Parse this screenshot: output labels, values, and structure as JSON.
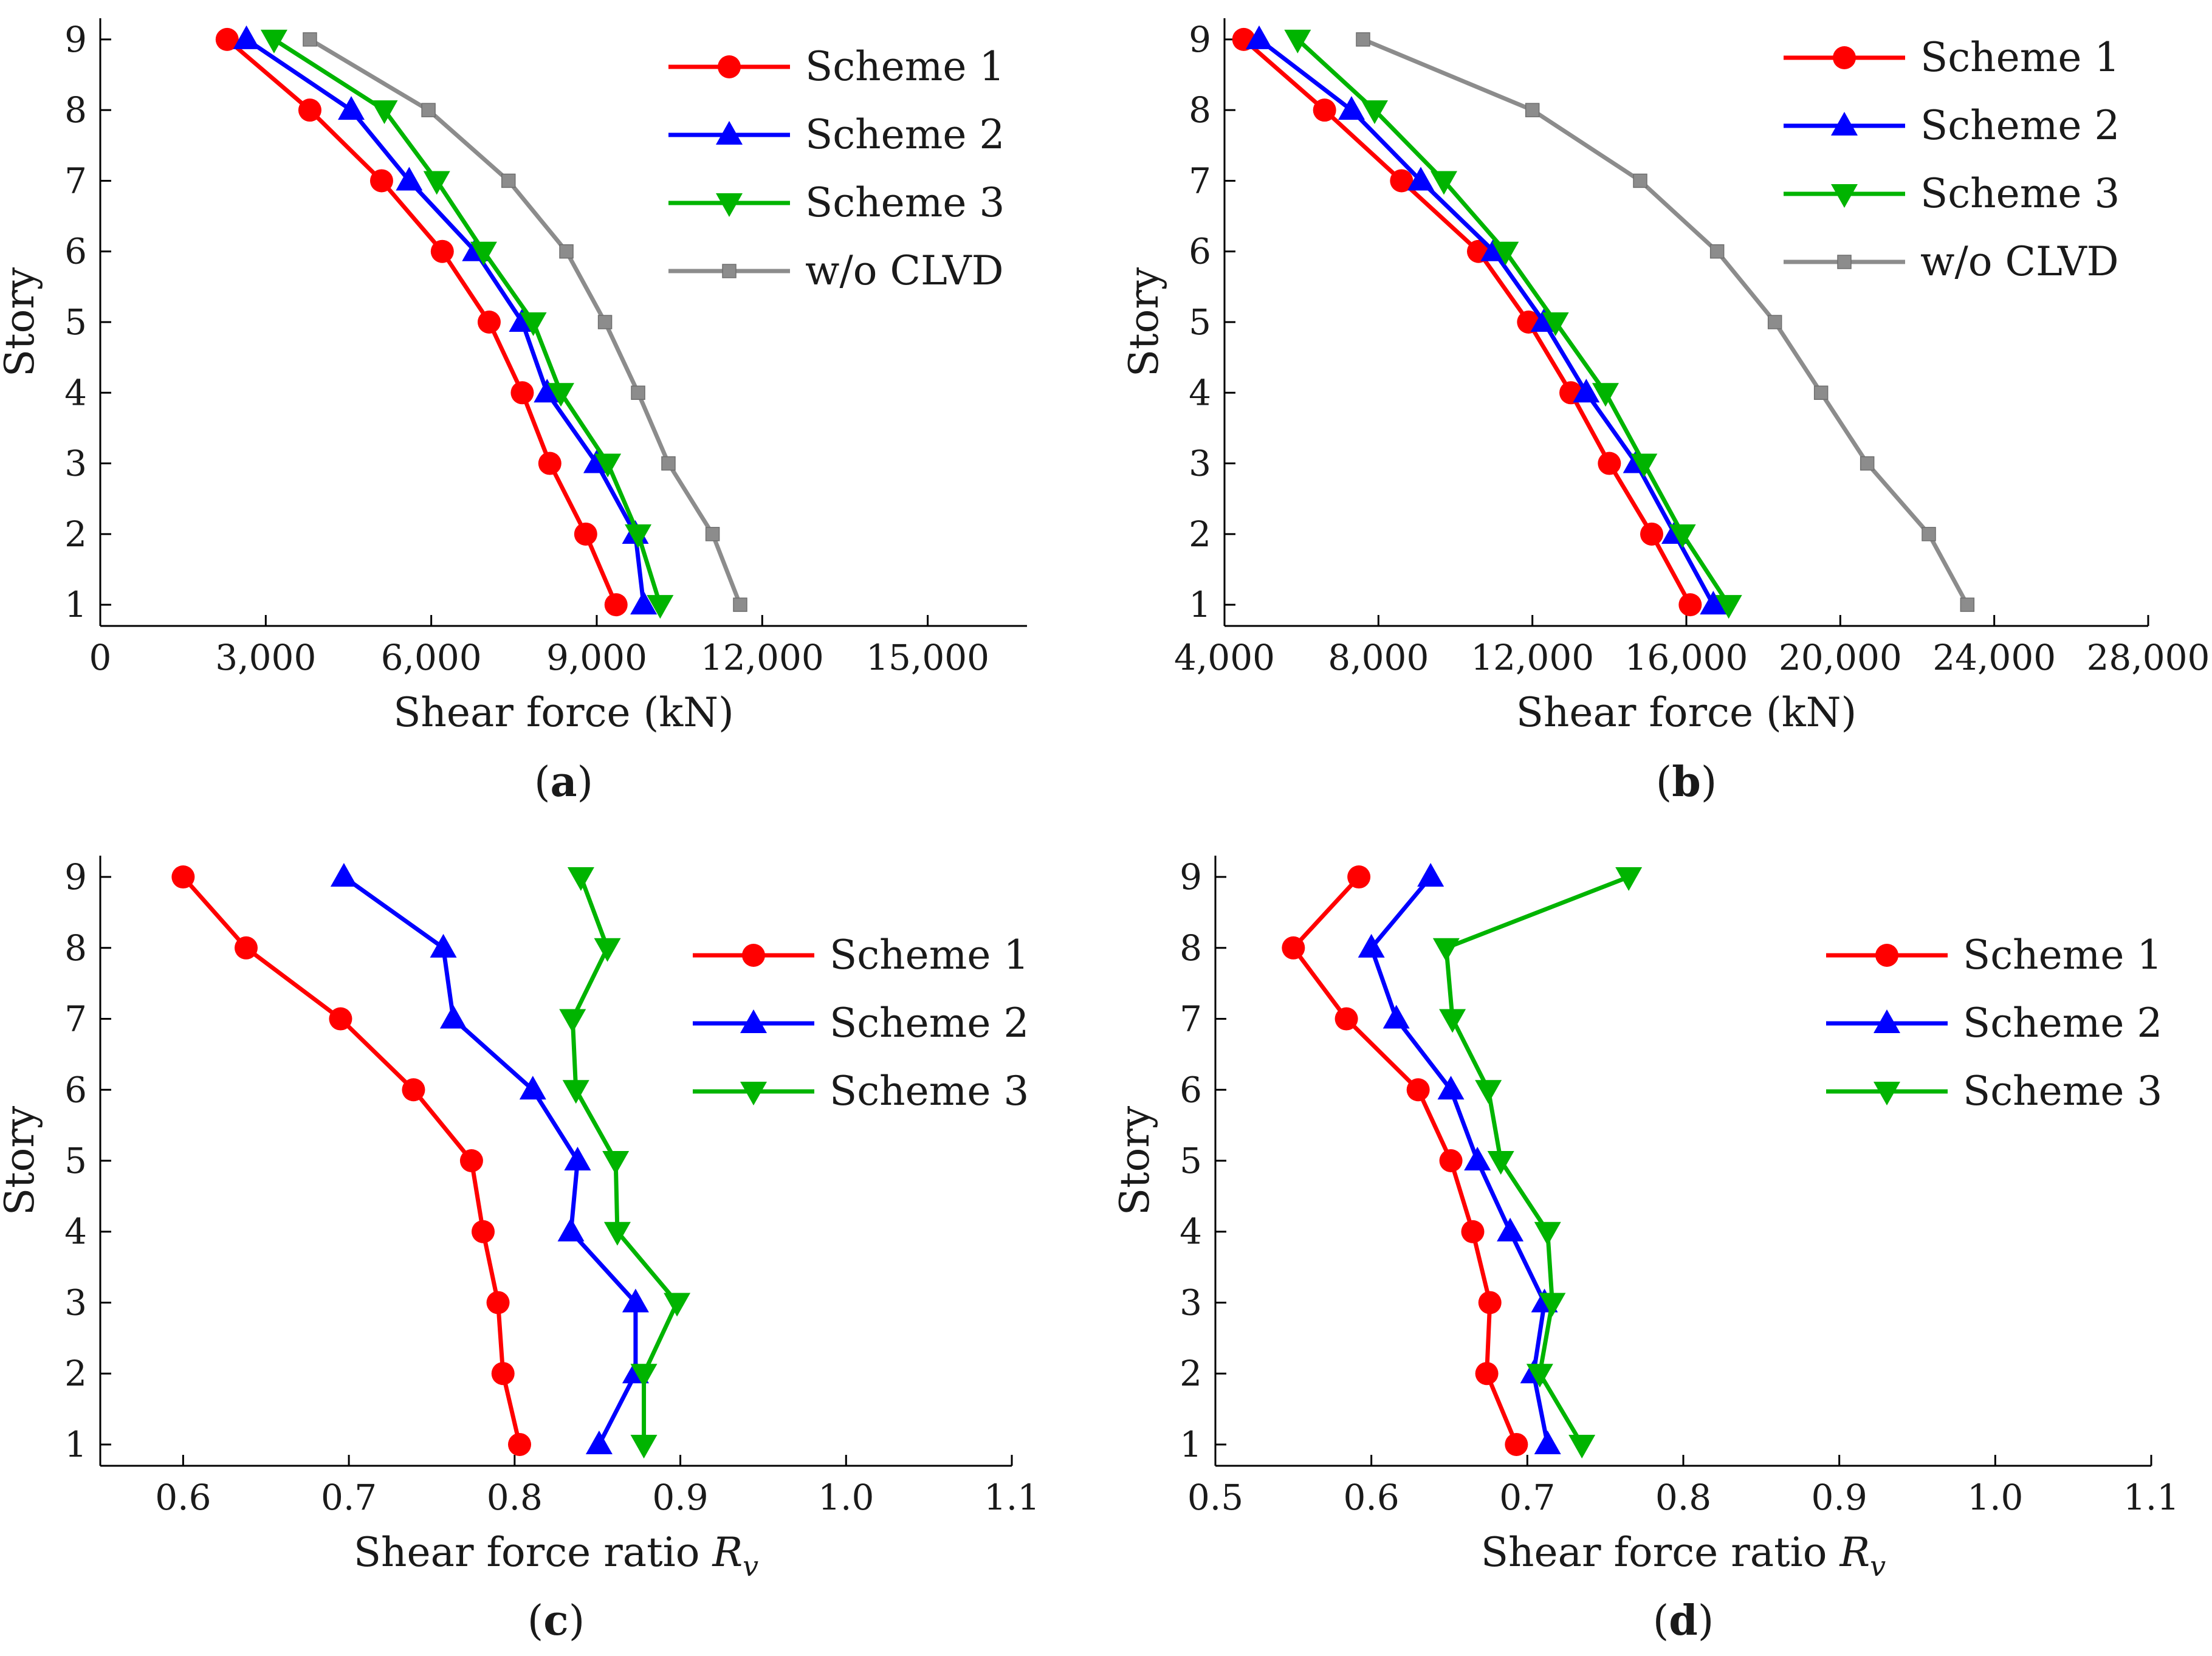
{
  "charts": [
    {
      "id": "a",
      "type": "line",
      "caption": "a",
      "xlabel": "Shear force (kN)",
      "ylabel": "Story",
      "xlim": [
        0,
        16800
      ],
      "ylim": [
        0.7,
        9.3
      ],
      "xticks": [
        0,
        3000,
        6000,
        9000,
        12000,
        15000
      ],
      "xtick_labels": [
        "0",
        "3,000",
        "6,000",
        "9,000",
        "12,000",
        "15,000"
      ],
      "yticks": [
        1,
        2,
        3,
        4,
        5,
        6,
        7,
        8,
        9
      ],
      "ytick_labels": [
        "1",
        "2",
        "3",
        "4",
        "5",
        "6",
        "7",
        "8",
        "9"
      ],
      "legend_position": "top-right",
      "series": [
        {
          "name": "Scheme 1",
          "color": "#ff0000",
          "marker": "circle",
          "y": [
            1,
            2,
            3,
            4,
            5,
            6,
            7,
            8,
            9
          ],
          "x": [
            9350,
            8800,
            8150,
            7650,
            7050,
            6200,
            5100,
            3800,
            2300
          ]
        },
        {
          "name": "Scheme 2",
          "color": "#0000ff",
          "marker": "triangle-up",
          "y": [
            1,
            2,
            3,
            4,
            5,
            6,
            7,
            8,
            9
          ],
          "x": [
            9850,
            9700,
            9000,
            8100,
            7650,
            6800,
            5600,
            4550,
            2650
          ]
        },
        {
          "name": "Scheme 3",
          "color": "#00b400",
          "marker": "triangle-down",
          "y": [
            1,
            2,
            3,
            4,
            5,
            6,
            7,
            8,
            9
          ],
          "x": [
            10150,
            9750,
            9200,
            8350,
            7850,
            6950,
            6100,
            5150,
            3150
          ]
        },
        {
          "name": "w/o CLVD",
          "color": "#8c8c8c",
          "marker": "square",
          "y": [
            1,
            2,
            3,
            4,
            5,
            6,
            7,
            8,
            9
          ],
          "x": [
            11600,
            11100,
            10300,
            9750,
            9150,
            8450,
            7400,
            5950,
            3800
          ]
        }
      ]
    },
    {
      "id": "b",
      "type": "line",
      "caption": "b",
      "xlabel": "Shear force (kN)",
      "ylabel": "Story",
      "xlim": [
        4000,
        28000
      ],
      "ylim": [
        0.7,
        9.3
      ],
      "xticks": [
        4000,
        8000,
        12000,
        16000,
        20000,
        24000,
        28000
      ],
      "xtick_labels": [
        "4,000",
        "8,000",
        "12,000",
        "16,000",
        "20,000",
        "24,000",
        "28,000"
      ],
      "yticks": [
        1,
        2,
        3,
        4,
        5,
        6,
        7,
        8,
        9
      ],
      "ytick_labels": [
        "1",
        "2",
        "3",
        "4",
        "5",
        "6",
        "7",
        "8",
        "9"
      ],
      "legend_position": "top-right",
      "series": [
        {
          "name": "Scheme 1",
          "color": "#ff0000",
          "marker": "circle",
          "y": [
            1,
            2,
            3,
            4,
            5,
            6,
            7,
            8,
            9
          ],
          "x": [
            16100,
            15100,
            14000,
            13000,
            11900,
            10600,
            8600,
            6600,
            4500
          ]
        },
        {
          "name": "Scheme 2",
          "color": "#0000ff",
          "marker": "triangle-up",
          "y": [
            1,
            2,
            3,
            4,
            5,
            6,
            7,
            8,
            9
          ],
          "x": [
            16700,
            15700,
            14700,
            13400,
            12300,
            11000,
            9100,
            7300,
            4900
          ]
        },
        {
          "name": "Scheme 3",
          "color": "#00b400",
          "marker": "triangle-down",
          "y": [
            1,
            2,
            3,
            4,
            5,
            6,
            7,
            8,
            9
          ],
          "x": [
            17100,
            15900,
            14900,
            13900,
            12600,
            11300,
            9700,
            7900,
            5900
          ]
        },
        {
          "name": "w/o CLVD",
          "color": "#8c8c8c",
          "marker": "square",
          "y": [
            1,
            2,
            3,
            4,
            5,
            6,
            7,
            8,
            9
          ],
          "x": [
            23300,
            22300,
            20700,
            19500,
            18300,
            16800,
            14800,
            12000,
            7600
          ]
        }
      ]
    },
    {
      "id": "c",
      "type": "line",
      "caption": "c",
      "xlabel": "Shear force ratio ",
      "xlabel_symbol": "R",
      "xlabel_sub": "v",
      "ylabel": "Story",
      "xlim": [
        0.55,
        1.1
      ],
      "ylim": [
        0.7,
        9.3
      ],
      "xticks": [
        0.6,
        0.7,
        0.8,
        0.9,
        1.0,
        1.1
      ],
      "xtick_labels": [
        "0.6",
        "0.7",
        "0.8",
        "0.9",
        "1.0",
        "1.1"
      ],
      "yticks": [
        1,
        2,
        3,
        4,
        5,
        6,
        7,
        8,
        9
      ],
      "ytick_labels": [
        "1",
        "2",
        "3",
        "4",
        "5",
        "6",
        "7",
        "8",
        "9"
      ],
      "legend_position": "top-right",
      "series": [
        {
          "name": "Scheme 1",
          "color": "#ff0000",
          "marker": "circle",
          "y": [
            1,
            2,
            3,
            4,
            5,
            6,
            7,
            8,
            9
          ],
          "x": [
            0.803,
            0.793,
            0.79,
            0.781,
            0.774,
            0.739,
            0.695,
            0.638,
            0.6
          ]
        },
        {
          "name": "Scheme 2",
          "color": "#0000ff",
          "marker": "triangle-up",
          "y": [
            1,
            2,
            3,
            4,
            5,
            6,
            7,
            8,
            9
          ],
          "x": [
            0.851,
            0.873,
            0.873,
            0.834,
            0.838,
            0.811,
            0.763,
            0.757,
            0.697
          ]
        },
        {
          "name": "Scheme 3",
          "color": "#00b400",
          "marker": "triangle-down",
          "y": [
            1,
            2,
            3,
            4,
            5,
            6,
            7,
            8,
            9
          ],
          "x": [
            0.878,
            0.878,
            0.898,
            0.862,
            0.861,
            0.837,
            0.835,
            0.856,
            0.84
          ]
        }
      ]
    },
    {
      "id": "d",
      "type": "line",
      "caption": "d",
      "xlabel": "Shear force ratio ",
      "xlabel_symbol": "R",
      "xlabel_sub": "v",
      "ylabel": "Story",
      "xlim": [
        0.5,
        1.1
      ],
      "ylim": [
        0.7,
        9.3
      ],
      "xticks": [
        0.5,
        0.6,
        0.7,
        0.8,
        0.9,
        1.0,
        1.1
      ],
      "xtick_labels": [
        "0.5",
        "0.6",
        "0.7",
        "0.8",
        "0.9",
        "1.0",
        "1.1"
      ],
      "yticks": [
        1,
        2,
        3,
        4,
        5,
        6,
        7,
        8,
        9
      ],
      "ytick_labels": [
        "1",
        "2",
        "3",
        "4",
        "5",
        "6",
        "7",
        "8",
        "9"
      ],
      "legend_position": "top-right",
      "series": [
        {
          "name": "Scheme 1",
          "color": "#ff0000",
          "marker": "circle",
          "y": [
            1,
            2,
            3,
            4,
            5,
            6,
            7,
            8,
            9
          ],
          "x": [
            0.693,
            0.674,
            0.676,
            0.665,
            0.651,
            0.63,
            0.584,
            0.55,
            0.592
          ]
        },
        {
          "name": "Scheme 2",
          "color": "#0000ff",
          "marker": "triangle-up",
          "y": [
            1,
            2,
            3,
            4,
            5,
            6,
            7,
            8,
            9
          ],
          "x": [
            0.713,
            0.704,
            0.711,
            0.689,
            0.668,
            0.651,
            0.616,
            0.6,
            0.638
          ]
        },
        {
          "name": "Scheme 3",
          "color": "#00b400",
          "marker": "triangle-down",
          "y": [
            1,
            2,
            3,
            4,
            5,
            6,
            7,
            8,
            9
          ],
          "x": [
            0.735,
            0.708,
            0.716,
            0.713,
            0.683,
            0.675,
            0.652,
            0.648,
            0.765
          ]
        }
      ]
    }
  ]
}
